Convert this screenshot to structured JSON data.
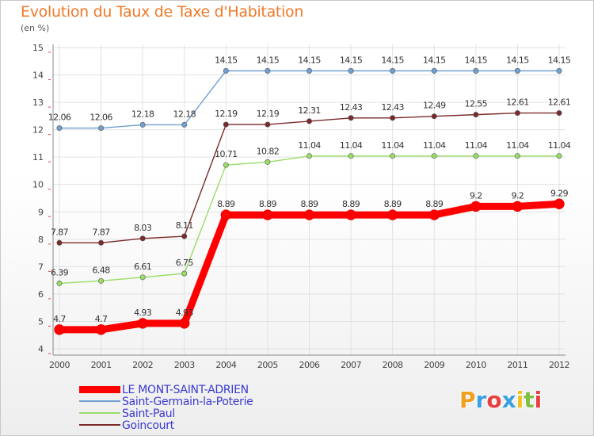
{
  "header": {
    "title": "Evolution du Taux de Taxe d'Habitation",
    "subtitle": "(en %)"
  },
  "chart_data": {
    "type": "line",
    "x": [
      "2000",
      "2001",
      "2002",
      "2003",
      "2004",
      "2005",
      "2006",
      "2007",
      "2008",
      "2009",
      "2010",
      "2011",
      "2012"
    ],
    "ylim": [
      4,
      15
    ],
    "yticks": [
      4,
      5,
      6,
      7,
      8,
      9,
      10,
      11,
      12,
      13,
      14,
      15
    ],
    "grid": true,
    "legend_position": "bottom-left",
    "series": [
      {
        "name": "LE MONT-SAINT-ADRIEN",
        "color": "#ff0000",
        "values": [
          4.7,
          4.7,
          4.93,
          4.93,
          8.89,
          8.89,
          8.89,
          8.89,
          8.89,
          8.89,
          9.2,
          9.2,
          9.29
        ],
        "labels": [
          "4.7",
          "4.7",
          "4.93",
          "4.93",
          "8.89",
          "8.89",
          "8.89",
          "8.89",
          "8.89",
          "8.89",
          "9.2",
          "9.2",
          "9.29"
        ]
      },
      {
        "name": "Saint-Germain-la-Poterie",
        "color": "#6fa0d0",
        "values": [
          12.06,
          12.06,
          12.18,
          12.18,
          14.15,
          14.15,
          14.15,
          14.15,
          14.15,
          14.15,
          14.15,
          14.15,
          14.15
        ],
        "labels": [
          "12.06",
          "12.06",
          "12.18",
          "12.18",
          "14.15",
          "14.15",
          "14.15",
          "14.15",
          "14.15",
          "14.15",
          "14.15",
          "14.15",
          "14.15"
        ]
      },
      {
        "name": "Saint-Paul",
        "color": "#99dd66",
        "values": [
          6.39,
          6.48,
          6.61,
          6.75,
          10.71,
          10.82,
          11.04,
          11.04,
          11.04,
          11.04,
          11.04,
          11.04,
          11.04
        ],
        "labels": [
          "6.39",
          "6.48",
          "6.61",
          "6.75",
          "10.71",
          "10.82",
          "11.04",
          "11.04",
          "11.04",
          "11.04",
          "11.04",
          "11.04",
          "11.04"
        ]
      },
      {
        "name": "Goincourt",
        "color": "#7a2a2a",
        "values": [
          7.87,
          7.87,
          8.03,
          8.11,
          12.19,
          12.19,
          12.31,
          12.43,
          12.43,
          12.49,
          12.55,
          12.61,
          12.61
        ],
        "labels": [
          "7.87",
          "7.87",
          "8.03",
          "8.11",
          "12.19",
          "12.19",
          "12.31",
          "12.43",
          "12.43",
          "12.49",
          "12.55",
          "12.61",
          "12.61"
        ]
      }
    ]
  },
  "logo": {
    "letters": [
      "P",
      "r",
      "o",
      "x",
      "i",
      "t",
      "i"
    ],
    "colors": [
      "#f0a020",
      "#3aa0e0",
      "#e84040",
      "#3aa0e0",
      "#f0c020",
      "#80c040",
      "#e84040"
    ]
  }
}
